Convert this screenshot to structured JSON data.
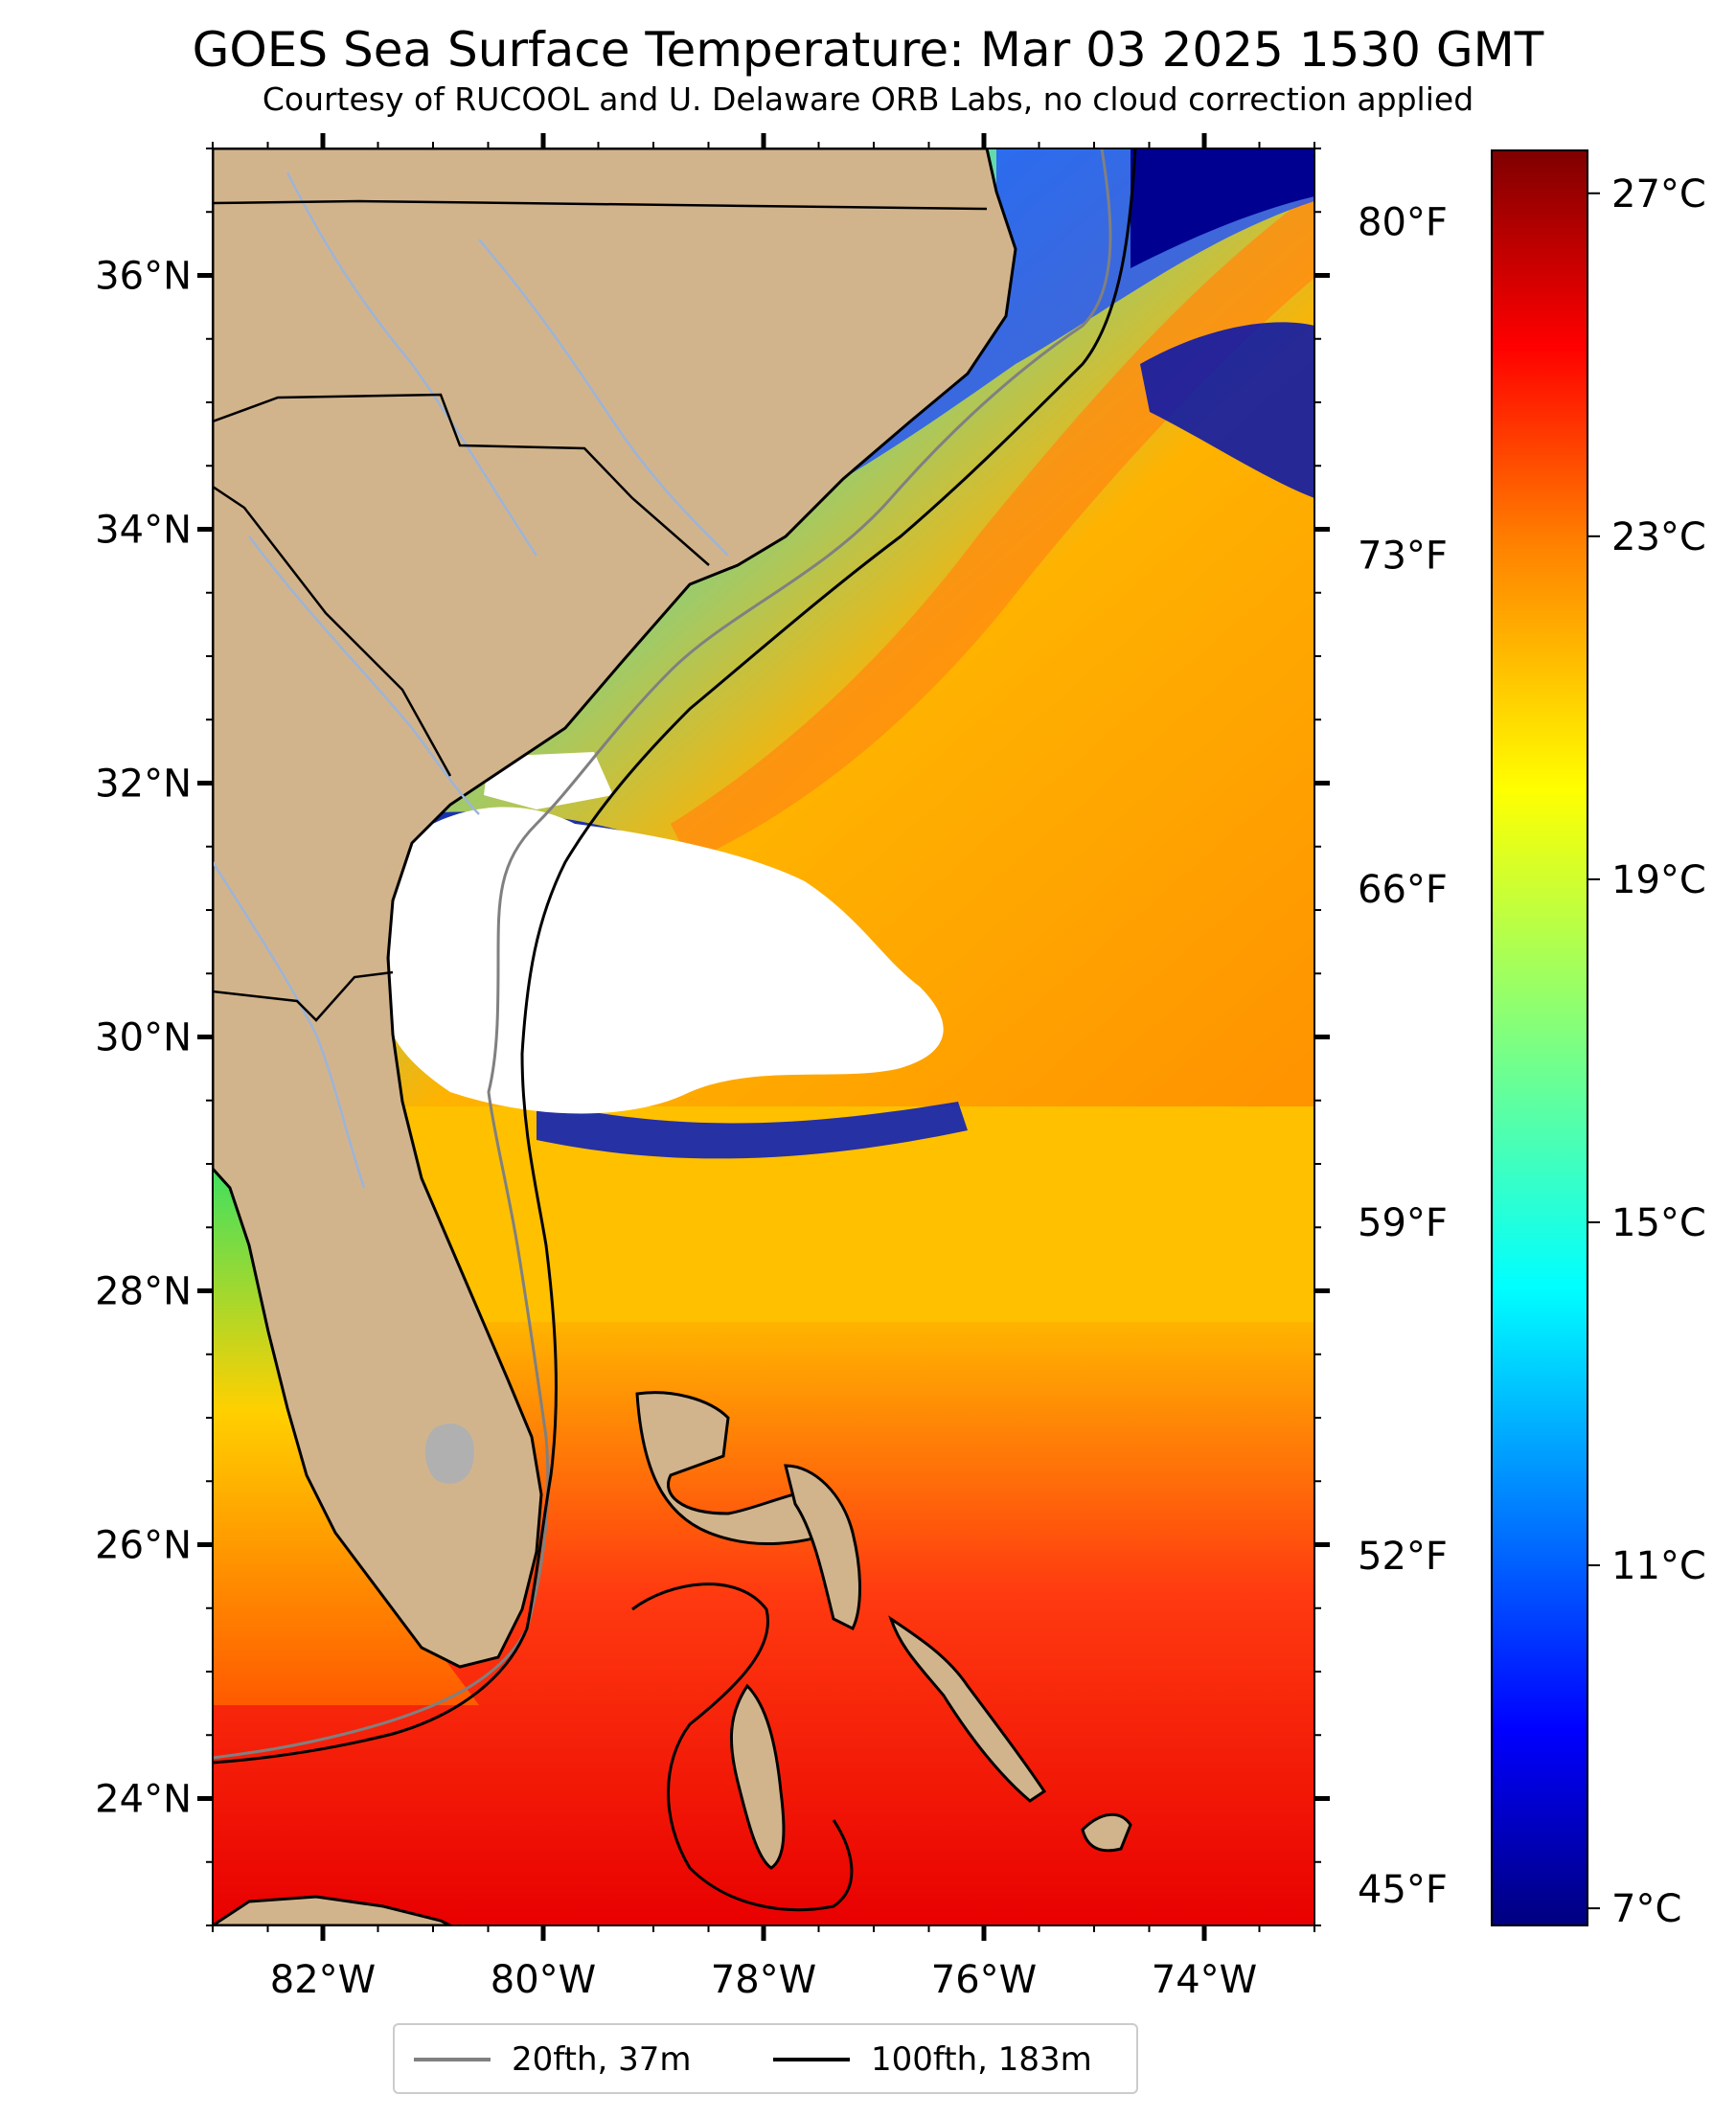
{
  "header": {
    "title": "GOES Sea Surface Temperature: Mar 03 2025 1530 GMT",
    "subtitle": "Courtesy of RUCOOL and U. Delaware ORB Labs, no cloud correction applied"
  },
  "map": {
    "extent": {
      "lon_min": -83,
      "lon_max": -73,
      "lat_min": 23,
      "lat_max": 37
    },
    "land_color": "#D2B48C",
    "cloud_mask_color": "#FFFFFF",
    "lake_color": "#B0B0B0",
    "river_color": "#9DB4D8",
    "border_color": "#000000",
    "lat_ticks": [
      {
        "value": 24,
        "label": "24°N"
      },
      {
        "value": 26,
        "label": "26°N"
      },
      {
        "value": 28,
        "label": "28°N"
      },
      {
        "value": 30,
        "label": "30°N"
      },
      {
        "value": 32,
        "label": "32°N"
      },
      {
        "value": 34,
        "label": "34°N"
      },
      {
        "value": 36,
        "label": "36°N"
      }
    ],
    "lon_ticks": [
      {
        "value": -82,
        "label": "82°W"
      },
      {
        "value": -80,
        "label": "80°W"
      },
      {
        "value": -78,
        "label": "78°W"
      },
      {
        "value": -76,
        "label": "76°W"
      },
      {
        "value": -74,
        "label": "74°W"
      }
    ],
    "fahrenheit_ticks": [
      {
        "value": 45,
        "label": "45°F"
      },
      {
        "value": 52,
        "label": "52°F"
      },
      {
        "value": 59,
        "label": "59°F"
      },
      {
        "value": 66,
        "label": "66°F"
      },
      {
        "value": 73,
        "label": "73°F"
      },
      {
        "value": 80,
        "label": "80°F"
      }
    ]
  },
  "colorbar": {
    "colormap": "jet",
    "min_c": 6.8,
    "max_c": 27.5,
    "celsius_ticks": [
      {
        "value": 7,
        "label": "7°C"
      },
      {
        "value": 11,
        "label": "11°C"
      },
      {
        "value": 15,
        "label": "15°C"
      },
      {
        "value": 19,
        "label": "19°C"
      },
      {
        "value": 23,
        "label": "23°C"
      },
      {
        "value": 27,
        "label": "27°C"
      }
    ],
    "stops": [
      "#00007F",
      "#0000FF",
      "#007FFF",
      "#00FFFF",
      "#7FFF7F",
      "#FFFF00",
      "#FF7F00",
      "#FF0000",
      "#7F0000"
    ]
  },
  "legend": {
    "items": [
      {
        "label": "20fth, 37m",
        "color": "#808080"
      },
      {
        "label": "100fth, 183m",
        "color": "#000000"
      }
    ]
  }
}
